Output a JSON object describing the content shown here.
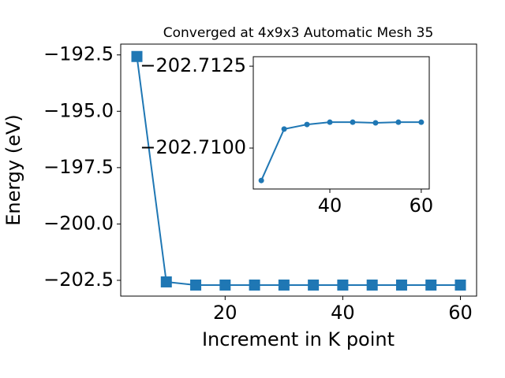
{
  "chart_data": [
    {
      "type": "line",
      "title": "Converged at 4x9x3 Automatic Mesh 35",
      "xlabel": "Increment in K point",
      "ylabel": "Energy (eV)",
      "x": [
        5,
        10,
        15,
        20,
        25,
        30,
        35,
        40,
        45,
        50,
        55,
        60
      ],
      "series": [
        {
          "color": "#1f77b4",
          "marker": "square",
          "values": [
            -192.57,
            -202.57,
            -202.71,
            -202.71,
            -202.71,
            -202.71,
            -202.71,
            -202.71,
            -202.71,
            -202.71,
            -202.71,
            -202.71
          ]
        }
      ],
      "xlim": [
        2.25,
        62.75
      ],
      "ylim": [
        -203.2,
        -192.02
      ],
      "xticks": [
        20,
        40,
        60
      ],
      "yticks": [
        {
          "value": -192.5,
          "label": "−192.5"
        },
        {
          "value": -195.0,
          "label": "−195.0"
        },
        {
          "value": -197.5,
          "label": "−197.5"
        },
        {
          "value": -200.0,
          "label": "−200.0"
        },
        {
          "value": -202.5,
          "label": "−202.5"
        }
      ]
    },
    {
      "type": "line",
      "x": [
        25,
        30,
        35,
        40,
        45,
        50,
        55,
        60
      ],
      "series": [
        {
          "color": "#1f77b4",
          "marker": "circle",
          "values": [
            -202.70901,
            -202.71058,
            -202.71072,
            -202.71079,
            -202.71079,
            -202.71077,
            -202.71079,
            -202.71079
          ]
        }
      ],
      "xlim": [
        23.25,
        61.75
      ],
      "ylim": [
        -202.70875,
        -202.71279
      ],
      "xticks": [
        40,
        60
      ],
      "yticks": [
        {
          "value": -202.7125,
          "label": "−202.7125"
        },
        {
          "value": -202.71,
          "label": "−202.7100"
        }
      ]
    }
  ]
}
